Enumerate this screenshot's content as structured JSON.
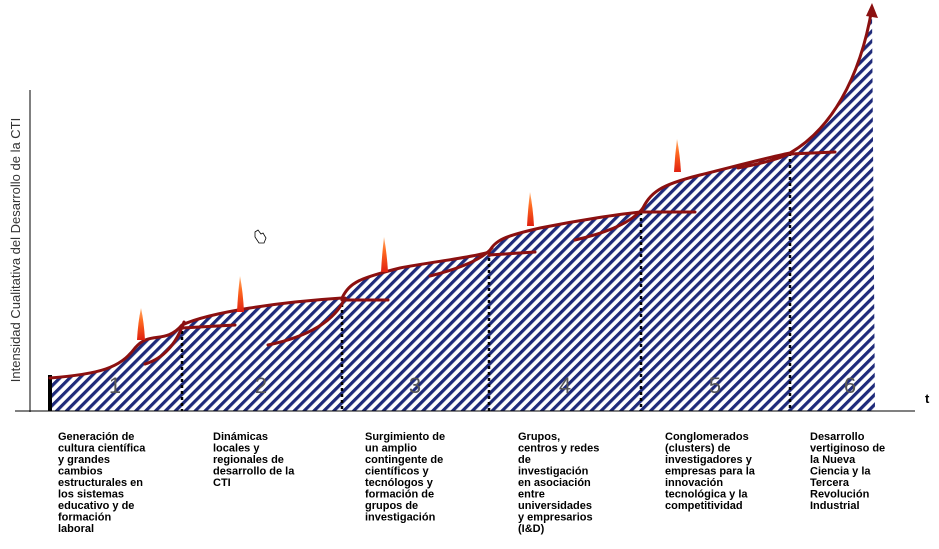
{
  "y_axis_label": "Intensidad Cualitativa del Desarrollo de la CTI",
  "x_axis_label": "t",
  "stages": [
    {
      "number": "1",
      "description": [
        "Generación de",
        "cultura científica",
        "y grandes",
        "cambios",
        "estructurales en",
        "los sistemas",
        "educativo y de",
        "formación",
        "laboral"
      ]
    },
    {
      "number": "2",
      "description": [
        "Dinámicas",
        "locales y",
        "regionales de",
        "desarrollo de la",
        "CTI"
      ]
    },
    {
      "number": "3",
      "description": [
        "Surgimiento de",
        "un amplio",
        "contingente de",
        "científicos y",
        "tecnólogos y",
        "formación de",
        "grupos de",
        "investigación"
      ]
    },
    {
      "number": "4",
      "description": [
        "Grupos,",
        "centros y redes",
        "de",
        "investigación",
        "en    asociación",
        "entre",
        "universidades",
        "y    empresarios",
        "(I&D)"
      ]
    },
    {
      "number": "5",
      "description": [
        "Conglomerados",
        "(clusters) de",
        "investigadores y",
        "empresas para la",
        "innovación",
        "tecnológica y la",
        "competitividad"
      ]
    },
    {
      "number": "6",
      "description": [
        "Desarrollo",
        "vertiginoso de",
        "la Nueva",
        "Ciencia y la",
        "Tercera",
        "Revolución",
        "Industrial"
      ]
    }
  ]
}
